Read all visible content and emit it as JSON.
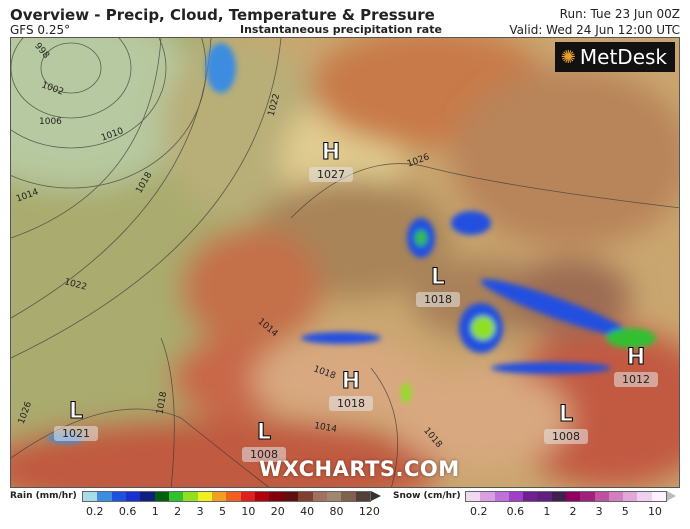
{
  "header": {
    "title": "Overview - Precip, Cloud, Temperature & Pressure",
    "model": "GFS 0.25°",
    "subtitle": "Instantaneous precipitation rate",
    "run": "Run: Tue 23 Jun 00Z",
    "valid": "Valid: Wed 24 Jun 12:00 UTC"
  },
  "map": {
    "logo": "MetDesk",
    "watermark": "WXCHARTS.COM",
    "pressure_centers": [
      {
        "type": "H",
        "value": "1027"
      },
      {
        "type": "L",
        "value": "1018"
      },
      {
        "type": "H",
        "value": "1018"
      },
      {
        "type": "L",
        "value": "1021"
      },
      {
        "type": "L",
        "value": "1008"
      },
      {
        "type": "L",
        "value": "1008"
      },
      {
        "type": "H",
        "value": "1012"
      }
    ],
    "isobar_labels": [
      "998",
      "1002",
      "1006",
      "1010",
      "1014",
      "1018",
      "1022",
      "1022",
      "1026",
      "1018",
      "1014",
      "1018",
      "1018",
      "1014",
      "1026"
    ]
  },
  "legend": {
    "rain": {
      "label": "Rain (mm/hr)",
      "ticks": [
        "0.2",
        "0.6",
        "1",
        "2",
        "3",
        "5",
        "10",
        "20",
        "40",
        "80",
        "120"
      ],
      "colors": [
        "#a8dce8",
        "#3c8ce0",
        "#2050e0",
        "#1830d0",
        "#102080",
        "#006010",
        "#30c030",
        "#90e020",
        "#f0f020",
        "#f0a020",
        "#f06020",
        "#e02020",
        "#b00010",
        "#800010",
        "#601010",
        "#804030",
        "#a07060",
        "#a08870",
        "#806050",
        "#504038"
      ]
    },
    "snow": {
      "label": "Snow (cm/hr)",
      "ticks": [
        "0.2",
        "0.6",
        "1",
        "2",
        "3",
        "5",
        "10"
      ],
      "colors": [
        "#f0d8f0",
        "#d8a0e0",
        "#c070d8",
        "#a040c8",
        "#702090",
        "#602080",
        "#402050",
        "#900060",
        "#a02080",
        "#c050a0",
        "#d080c0",
        "#e0a8d8",
        "#f0d0f0",
        "#fff0ff"
      ]
    }
  }
}
